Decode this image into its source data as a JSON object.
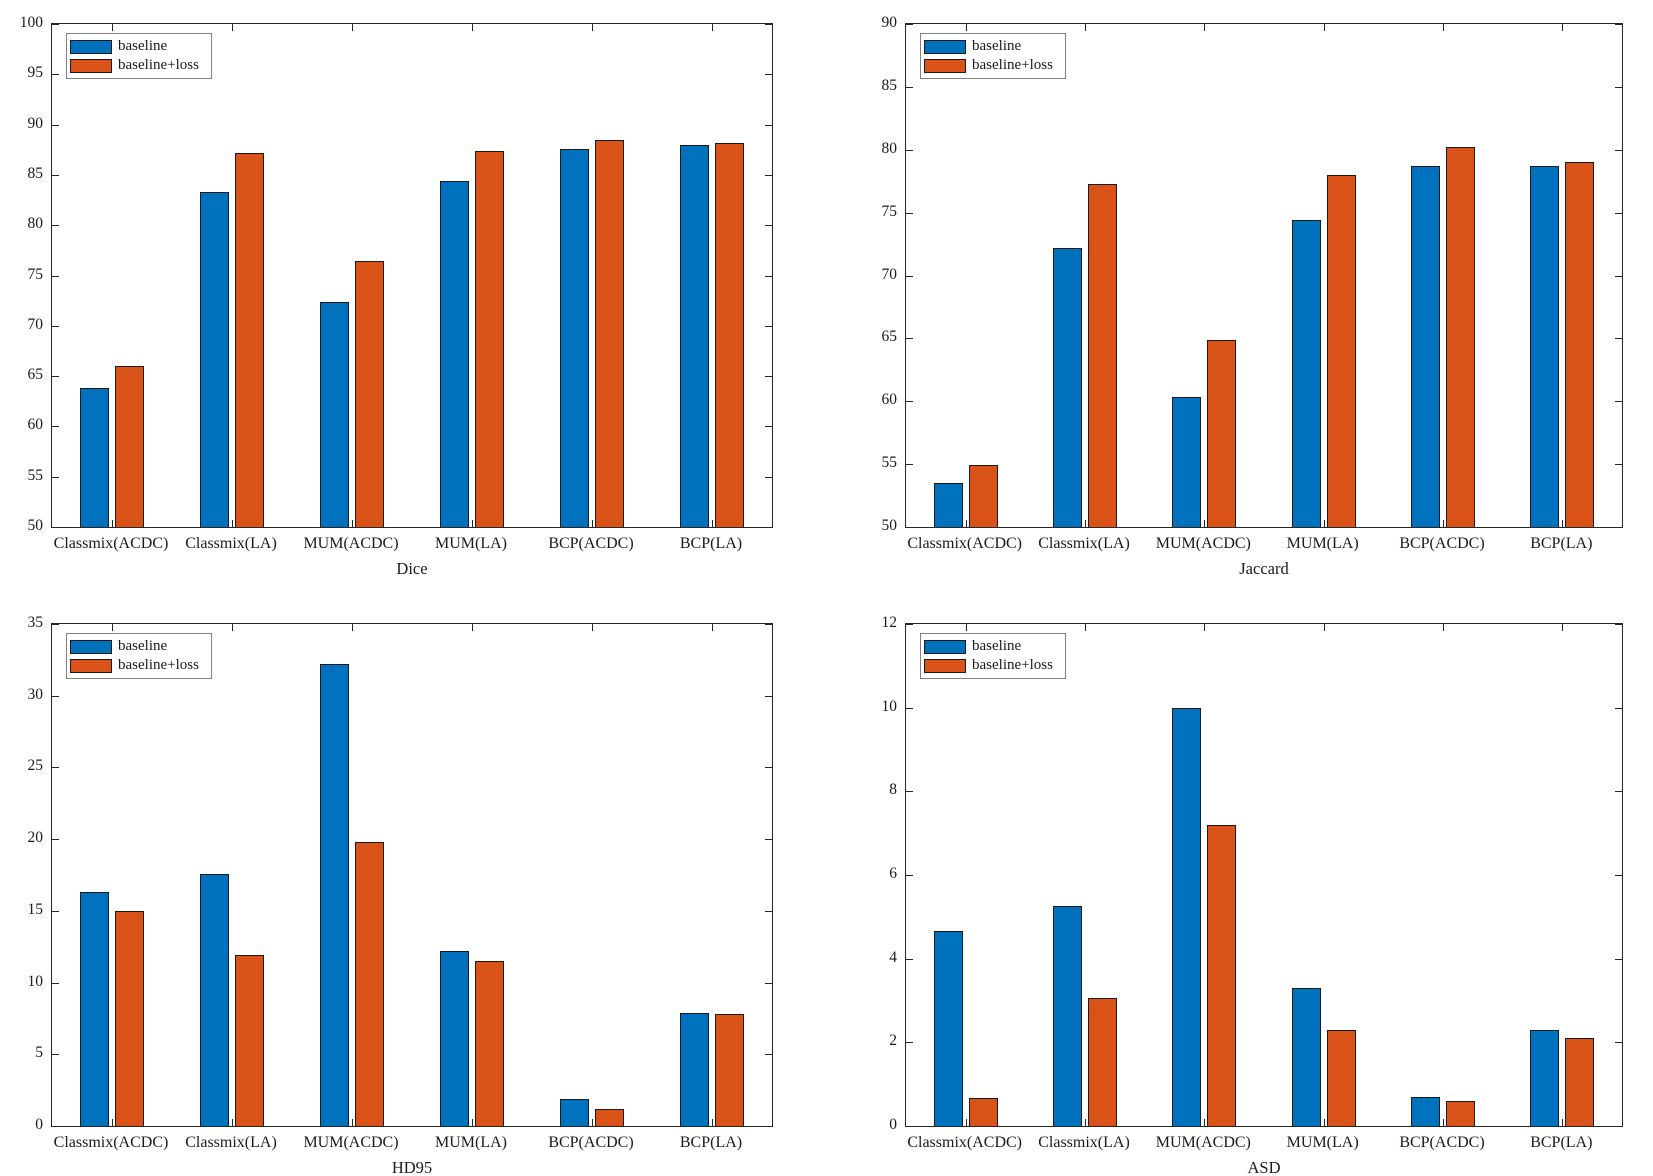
{
  "figure": {
    "background": "#ffffff"
  },
  "series_colors": [
    "#0072BD",
    "#D95319"
  ],
  "bar_edge_color": "#1a1a1a",
  "axis_color": "#262626",
  "chart_data": [
    {
      "type": "bar",
      "xlabel": "Dice",
      "categories": [
        "Classmix(ACDC)",
        "Classmix(LA)",
        "MUM(ACDC)",
        "MUM(LA)",
        "BCP(ACDC)",
        "BCP(LA)"
      ],
      "series": [
        {
          "name": "baseline",
          "values": [
            63.8,
            83.3,
            72.4,
            84.4,
            87.6,
            88.0
          ]
        },
        {
          "name": "baseline+loss",
          "values": [
            66.0,
            87.2,
            76.4,
            87.4,
            88.5,
            88.2
          ]
        }
      ],
      "ylim": [
        50,
        100
      ],
      "yticks": [
        50,
        55,
        60,
        65,
        70,
        75,
        80,
        85,
        90,
        95,
        100
      ],
      "grid": false,
      "legend_position": "top-left"
    },
    {
      "type": "bar",
      "xlabel": "Jaccard",
      "categories": [
        "Classmix(ACDC)",
        "Classmix(LA)",
        "MUM(ACDC)",
        "MUM(LA)",
        "BCP(ACDC)",
        "BCP(LA)"
      ],
      "series": [
        {
          "name": "baseline",
          "values": [
            53.5,
            72.2,
            60.3,
            74.4,
            78.7,
            78.7
          ]
        },
        {
          "name": "baseline+loss",
          "values": [
            54.9,
            77.3,
            64.9,
            78.0,
            80.2,
            79.0
          ]
        }
      ],
      "ylim": [
        50,
        90
      ],
      "yticks": [
        50,
        55,
        60,
        65,
        70,
        75,
        80,
        85,
        90
      ],
      "grid": false,
      "legend_position": "top-left"
    },
    {
      "type": "bar",
      "xlabel": "HD95",
      "categories": [
        "Classmix(ACDC)",
        "Classmix(LA)",
        "MUM(ACDC)",
        "MUM(LA)",
        "BCP(ACDC)",
        "BCP(LA)"
      ],
      "series": [
        {
          "name": "baseline",
          "values": [
            16.3,
            17.6,
            32.2,
            12.2,
            1.9,
            7.9
          ]
        },
        {
          "name": "baseline+loss",
          "values": [
            15.0,
            11.9,
            19.8,
            11.5,
            1.2,
            7.8
          ]
        }
      ],
      "ylim": [
        0,
        35
      ],
      "yticks": [
        0,
        5,
        10,
        15,
        20,
        25,
        30,
        35
      ],
      "grid": false,
      "legend_position": "top-left"
    },
    {
      "type": "bar",
      "xlabel": "ASD",
      "categories": [
        "Classmix(ACDC)",
        "Classmix(LA)",
        "MUM(ACDC)",
        "MUM(LA)",
        "BCP(ACDC)",
        "BCP(LA)"
      ],
      "series": [
        {
          "name": "baseline",
          "values": [
            4.65,
            5.25,
            10.0,
            3.3,
            0.7,
            2.3
          ]
        },
        {
          "name": "baseline+loss",
          "values": [
            0.67,
            3.05,
            7.2,
            2.3,
            0.6,
            2.1
          ]
        }
      ],
      "ylim": [
        0,
        12
      ],
      "yticks": [
        0,
        2,
        4,
        6,
        8,
        10,
        12
      ],
      "grid": false,
      "legend_position": "top-left"
    }
  ]
}
